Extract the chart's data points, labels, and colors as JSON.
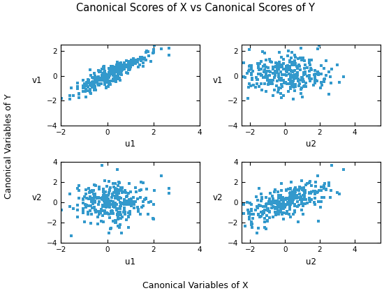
{
  "title": "Canonical Scores of X vs Canonical Scores of Y",
  "xlabel_bottom": "Canonical Variables of X",
  "ylabel_left": "Canonical Variables of Y",
  "subplots": [
    {
      "xlabel": "u1",
      "ylabel": "v1",
      "xlim": [
        -2,
        4
      ],
      "ylim": [
        -4,
        2.5
      ],
      "xticks": [
        -2,
        0,
        2,
        4
      ],
      "yticks": [
        -4,
        -2,
        0,
        2
      ]
    },
    {
      "xlabel": "u2",
      "ylabel": "v1",
      "xlim": [
        -2.5,
        5.5
      ],
      "ylim": [
        -4,
        2.5
      ],
      "xticks": [
        -2,
        0,
        2,
        4
      ],
      "yticks": [
        -4,
        -2,
        0,
        2
      ]
    },
    {
      "xlabel": "u1",
      "ylabel": "v2",
      "xlim": [
        -2,
        4
      ],
      "ylim": [
        -4,
        4
      ],
      "xticks": [
        -2,
        0,
        2,
        4
      ],
      "yticks": [
        -4,
        -2,
        0,
        2,
        4
      ]
    },
    {
      "xlabel": "u2",
      "ylabel": "v2",
      "xlim": [
        -2.5,
        5.5
      ],
      "ylim": [
        -4,
        4
      ],
      "xticks": [
        -2,
        0,
        2,
        4
      ],
      "yticks": [
        -4,
        -2,
        0,
        2,
        4
      ]
    }
  ],
  "marker_color": "#3399CC",
  "marker": "s",
  "marker_size": 3.0,
  "n_points": 300,
  "seed": 42
}
